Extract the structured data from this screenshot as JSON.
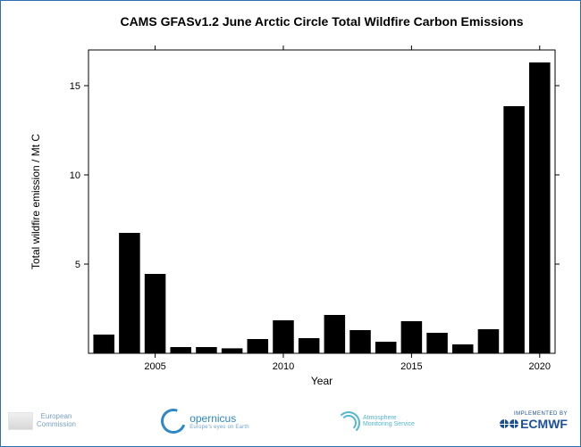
{
  "chart": {
    "type": "bar",
    "title": "CAMS GFASv1.2 June Arctic Circle Total Wildfire Carbon Emissions",
    "title_fontsize": 14,
    "xlabel": "Year",
    "ylabel": "Total wildfire emission / Mt C",
    "label_fontsize": 12,
    "tick_fontsize": 11,
    "background_color": "#ffffff",
    "spine_color": "#000000",
    "bar_color": "#000000",
    "bar_width": 0.82,
    "ylim": [
      0,
      17
    ],
    "yticks": [
      5,
      10,
      15
    ],
    "xlim": [
      2002.4,
      2020.6
    ],
    "xticks": [
      2005,
      2010,
      2015,
      2020
    ],
    "years": [
      2003,
      2004,
      2005,
      2006,
      2007,
      2008,
      2009,
      2010,
      2011,
      2012,
      2013,
      2014,
      2015,
      2016,
      2017,
      2018,
      2019,
      2020
    ],
    "values": [
      1.05,
      6.75,
      4.45,
      0.35,
      0.35,
      0.28,
      0.8,
      1.85,
      0.85,
      2.15,
      1.3,
      0.65,
      1.8,
      1.15,
      0.5,
      1.35,
      13.85,
      16.3
    ]
  },
  "footer": {
    "ec": {
      "line1": "European",
      "line2": "Commission"
    },
    "copernicus": {
      "name": "opernicus",
      "tagline": "Europe's eyes on Earth"
    },
    "cams": {
      "line1": "Atmosphere",
      "line2": "Monitoring Service"
    },
    "ecmwf": {
      "implemented": "IMPLEMENTED BY",
      "brand": "ECMWF"
    }
  },
  "colors": {
    "frame_border": "#2f6fb0",
    "copernicus": "#2f88c5",
    "cams": "#55b6cf",
    "ecmwf": "#1b4f9c"
  }
}
